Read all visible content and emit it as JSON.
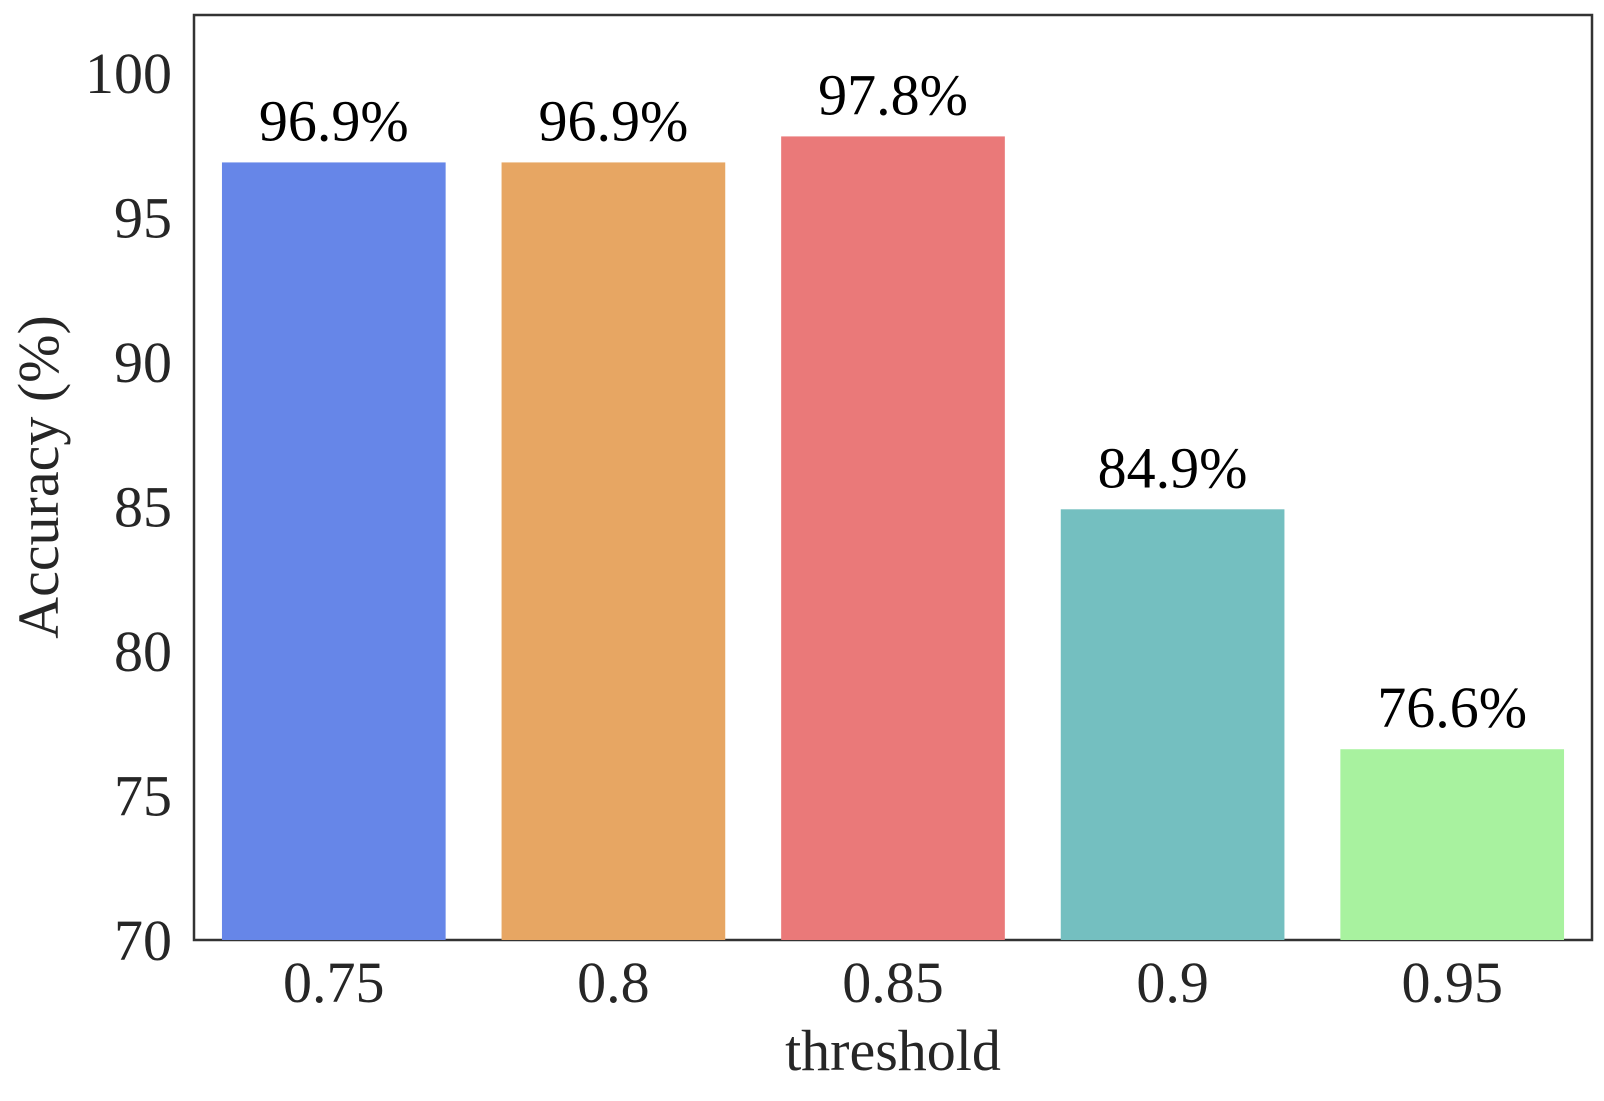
{
  "chart_data": {
    "type": "bar",
    "title": "",
    "xlabel": "threshold",
    "ylabel": "Accuracy (%)",
    "categories": [
      "0.75",
      "0.8",
      "0.85",
      "0.9",
      "0.95"
    ],
    "values": [
      96.9,
      96.9,
      97.8,
      84.9,
      76.6
    ],
    "data_labels": [
      "96.9%",
      "96.9%",
      "97.8%",
      "84.9%",
      "76.6%"
    ],
    "colors": [
      "#6686e8",
      "#e7a663",
      "#ea7979",
      "#74bfc0",
      "#a8f29f"
    ],
    "ylim": [
      70,
      102
    ],
    "yticks": [
      70,
      75,
      80,
      85,
      90,
      95,
      100
    ],
    "grid": false,
    "legend": "none"
  }
}
